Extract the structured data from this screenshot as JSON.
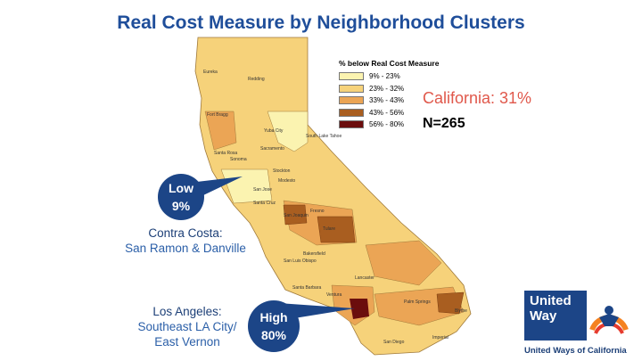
{
  "title": "Real Cost Measure by Neighborhood Clusters",
  "legend": {
    "title": "% below Real Cost Measure",
    "items": [
      {
        "label": "9% - 23%",
        "color": "#fbf3b0"
      },
      {
        "label": "23% - 32%",
        "color": "#f6d27a"
      },
      {
        "label": "33% - 43%",
        "color": "#eba555"
      },
      {
        "label": "43% - 56%",
        "color": "#a95e20"
      },
      {
        "label": "56% - 80%",
        "color": "#6b0d0d"
      }
    ]
  },
  "stats": {
    "california": "California: 31%",
    "n": "N=265"
  },
  "low_callout": {
    "line1": "Low",
    "line2": "9%"
  },
  "high_callout": {
    "line1": "High",
    "line2": "80%"
  },
  "contra_costa": {
    "heading": "Contra Costa:",
    "detail": "San Ramon & Danville"
  },
  "los_angeles": {
    "heading": "Los Angeles:",
    "detail1": "Southeast LA City/",
    "detail2": "East Vernon"
  },
  "map_cities": [
    "Eureka",
    "Redding",
    "Fort Bragg",
    "Yuba City",
    "Sacramento",
    "South Lake Tahoe",
    "Santa Rosa",
    "Sonoma",
    "Stockton",
    "Modesto",
    "San Jose",
    "Santa Cruz",
    "Fresno",
    "San Joaquin",
    "Tulare",
    "Bakersfield",
    "San Luis Obispo",
    "Santa Barbara",
    "Ventura",
    "Lancaster",
    "Palm Springs",
    "Blythe",
    "Imperial",
    "San Diego"
  ],
  "logo": {
    "line1": "United",
    "line2": "Way",
    "caption": "United Ways of California"
  },
  "colors": {
    "title": "#1f4e9a",
    "stat": "#e0584b",
    "bubble": "#1c4587"
  }
}
